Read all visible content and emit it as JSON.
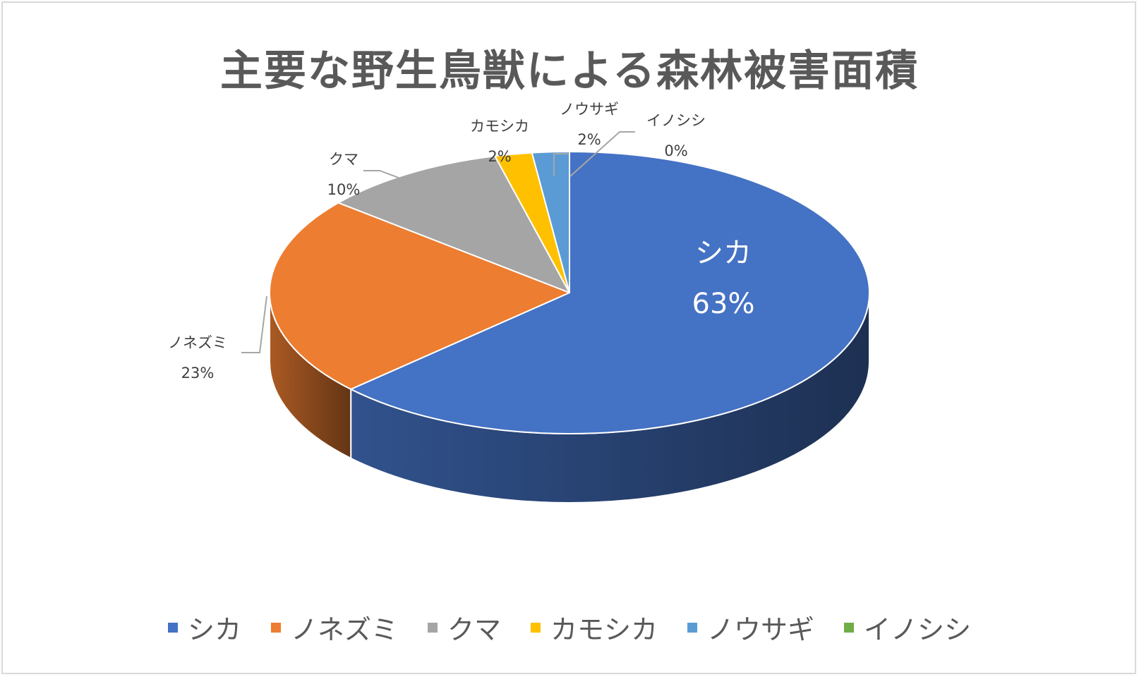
{
  "chart_data": {
    "type": "pie",
    "variant": "3d",
    "title": "主要な野生鳥獣による森林被害面積",
    "categories": [
      "シカ",
      "ノネズミ",
      "クマ",
      "カモシカ",
      "ノウサギ",
      "イノシシ"
    ],
    "values": [
      63,
      23,
      10,
      2,
      2,
      0
    ],
    "data_labels": [
      "63%",
      "23%",
      "10%",
      "2%",
      "2%",
      "0%"
    ],
    "colors": [
      "#4472C4",
      "#ED7D31",
      "#A5A5A5",
      "#FFC000",
      "#5B9BD5",
      "#70AD47"
    ],
    "legend_position": "bottom"
  }
}
